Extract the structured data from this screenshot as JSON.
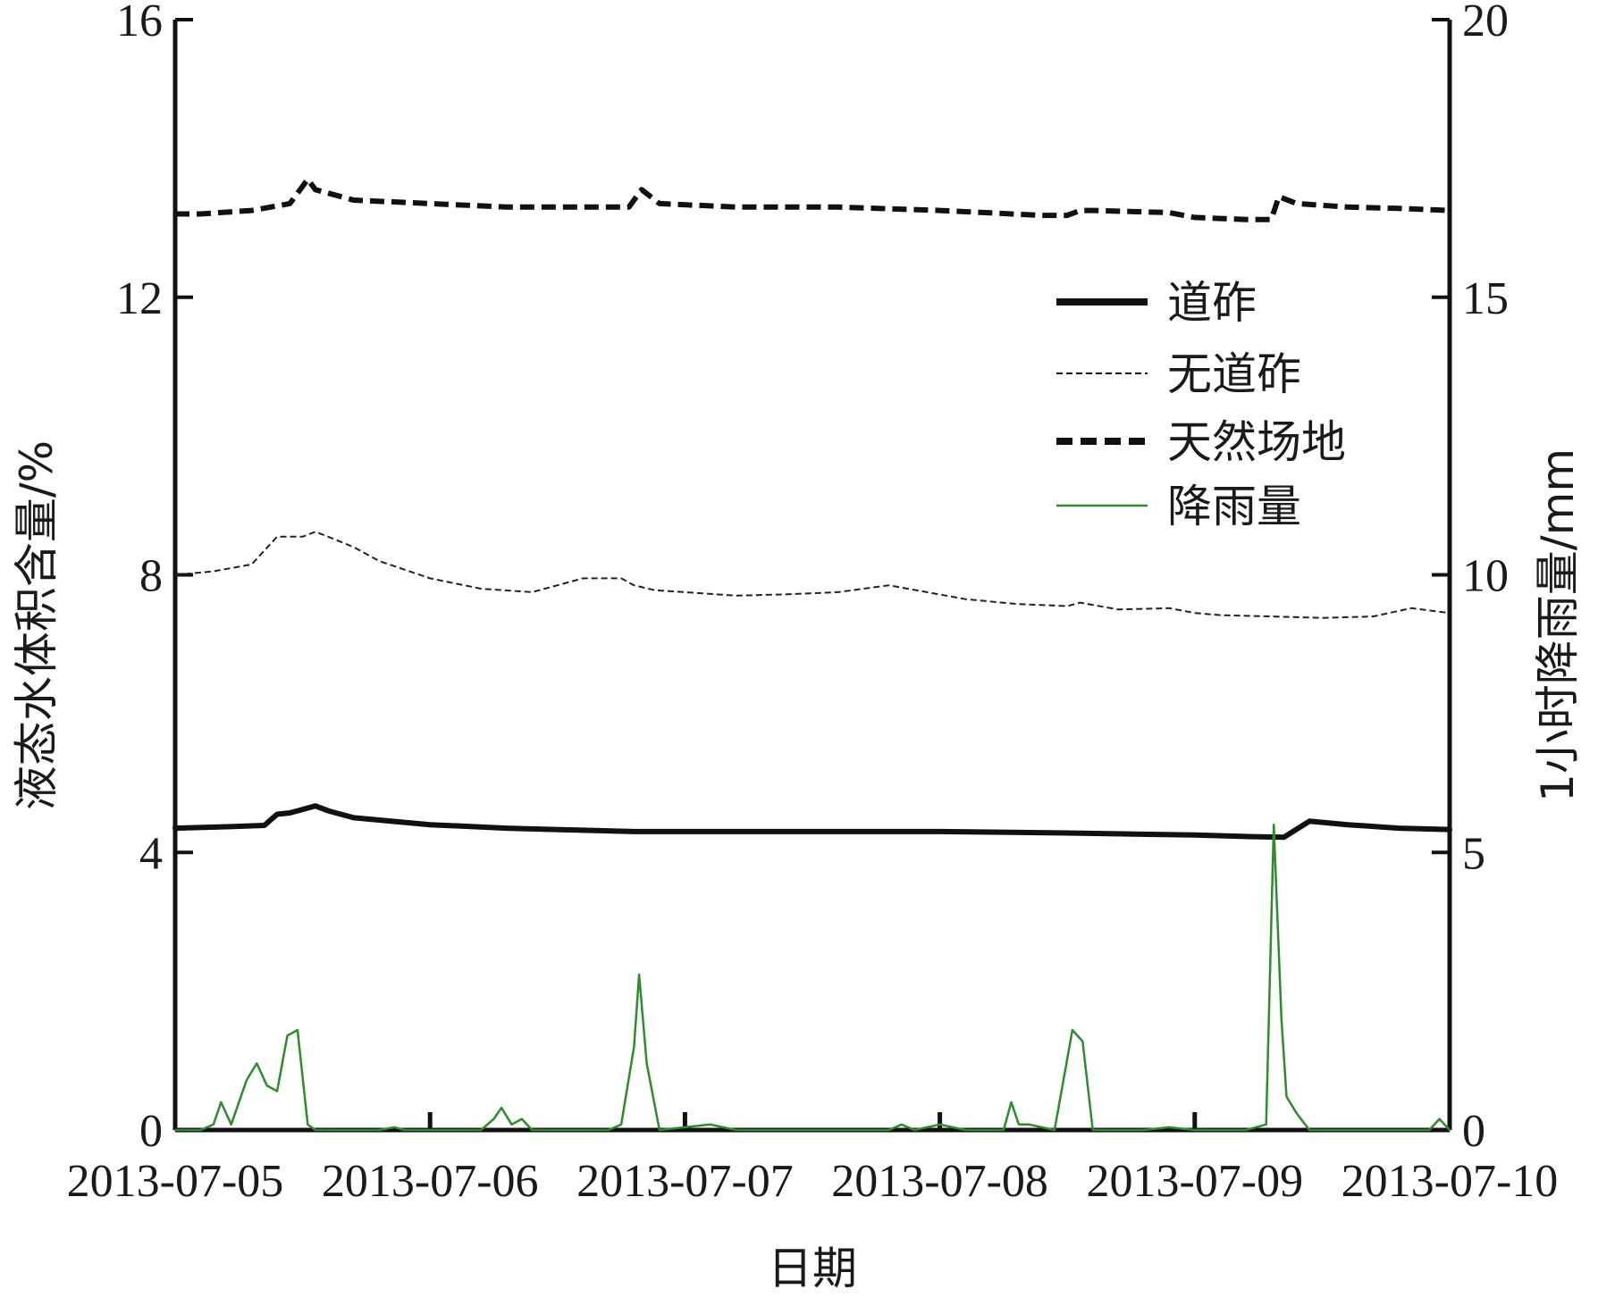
{
  "chart_data": {
    "type": "line",
    "xlabel": "日期",
    "ylabel_left": "液态水体积含量/%",
    "ylabel_right": "1小时降雨量/mm",
    "x_tick_labels": [
      "2013-07-05",
      "2013-07-06",
      "2013-07-07",
      "2013-07-08",
      "2013-07-09",
      "2013-07-10"
    ],
    "x_range_days": [
      0,
      5
    ],
    "left_ylim": [
      0,
      16
    ],
    "left_ticks": [
      "0",
      "4",
      "8",
      "12",
      "16"
    ],
    "right_ylim": [
      0,
      20
    ],
    "right_ticks": [
      "0",
      "5",
      "10",
      "15",
      "20"
    ],
    "grid": false,
    "legend_position": "top-right",
    "series": [
      {
        "name": "道砟",
        "axis": "left",
        "style": "solid-thick",
        "color": "#111111",
        "x": [
          0,
          0.2,
          0.35,
          0.4,
          0.45,
          0.5,
          0.55,
          0.6,
          0.7,
          1.0,
          1.3,
          1.6,
          1.8,
          2.0,
          2.5,
          3.0,
          3.5,
          4.0,
          4.2,
          4.35,
          4.45,
          4.6,
          4.8,
          5.0
        ],
        "y": [
          4.35,
          4.37,
          4.39,
          4.55,
          4.57,
          4.62,
          4.67,
          4.6,
          4.5,
          4.4,
          4.35,
          4.32,
          4.3,
          4.3,
          4.3,
          4.3,
          4.28,
          4.25,
          4.23,
          4.22,
          4.45,
          4.4,
          4.35,
          4.33
        ]
      },
      {
        "name": "无道砟",
        "axis": "left",
        "style": "dashed-thin",
        "color": "#222222",
        "x": [
          0,
          0.15,
          0.3,
          0.4,
          0.5,
          0.55,
          0.6,
          0.7,
          0.8,
          1.0,
          1.2,
          1.4,
          1.6,
          1.75,
          1.8,
          1.88,
          2.0,
          2.2,
          2.4,
          2.6,
          2.8,
          2.95,
          3.1,
          3.3,
          3.5,
          3.55,
          3.7,
          3.9,
          4.0,
          4.1,
          4.3,
          4.5,
          4.7,
          4.85,
          5.0
        ],
        "y": [
          8.0,
          8.05,
          8.15,
          8.55,
          8.55,
          8.62,
          8.55,
          8.4,
          8.2,
          7.95,
          7.8,
          7.75,
          7.95,
          7.95,
          7.85,
          7.78,
          7.75,
          7.7,
          7.72,
          7.75,
          7.85,
          7.75,
          7.65,
          7.58,
          7.55,
          7.6,
          7.5,
          7.52,
          7.45,
          7.42,
          7.4,
          7.38,
          7.4,
          7.52,
          7.45
        ]
      },
      {
        "name": "天然场地",
        "axis": "left",
        "style": "dashed-thick",
        "color": "#111111",
        "x": [
          0,
          0.1,
          0.3,
          0.45,
          0.5,
          0.52,
          0.55,
          0.6,
          0.7,
          1.0,
          1.3,
          1.6,
          1.78,
          1.83,
          1.9,
          2.2,
          2.6,
          3.0,
          3.4,
          3.5,
          3.55,
          3.6,
          3.9,
          4.0,
          4.2,
          4.3,
          4.33,
          4.4,
          4.6,
          4.8,
          5.0
        ],
        "y": [
          13.2,
          13.2,
          13.25,
          13.35,
          13.6,
          13.7,
          13.55,
          13.5,
          13.4,
          13.35,
          13.3,
          13.3,
          13.3,
          13.55,
          13.35,
          13.3,
          13.3,
          13.25,
          13.18,
          13.18,
          13.25,
          13.25,
          13.22,
          13.15,
          13.12,
          13.12,
          13.45,
          13.35,
          13.3,
          13.28,
          13.25
        ]
      },
      {
        "name": "降雨量",
        "axis": "right",
        "style": "solid-thin",
        "color": "#2e8b2e",
        "x": [
          0,
          0.1,
          0.15,
          0.18,
          0.22,
          0.28,
          0.32,
          0.36,
          0.4,
          0.44,
          0.48,
          0.52,
          0.55,
          0.6,
          0.8,
          0.86,
          0.9,
          1.0,
          1.1,
          1.2,
          1.25,
          1.28,
          1.32,
          1.36,
          1.4,
          1.7,
          1.75,
          1.8,
          1.82,
          1.85,
          1.9,
          2.0,
          2.1,
          2.2,
          2.4,
          2.8,
          2.85,
          2.9,
          3.0,
          3.1,
          3.25,
          3.28,
          3.31,
          3.35,
          3.45,
          3.52,
          3.56,
          3.6,
          3.8,
          3.9,
          4.0,
          4.2,
          4.28,
          4.31,
          4.34,
          4.36,
          4.4,
          4.45,
          4.5,
          4.8,
          4.92,
          4.96,
          5.0
        ],
        "y": [
          0,
          0,
          0.1,
          0.5,
          0.1,
          0.9,
          1.2,
          0.8,
          0.7,
          1.7,
          1.8,
          0.1,
          0,
          0,
          0,
          0.05,
          0,
          0,
          0,
          0,
          0.2,
          0.4,
          0.1,
          0.2,
          0,
          0,
          0.1,
          1.5,
          2.8,
          1.2,
          0,
          0.05,
          0.1,
          0,
          0,
          0,
          0.1,
          0,
          0.1,
          0,
          0,
          0.5,
          0.1,
          0.1,
          0,
          1.8,
          1.6,
          0,
          0,
          0.05,
          0,
          0,
          0.1,
          5.5,
          2.0,
          0.6,
          0.3,
          0,
          0,
          0,
          0,
          0.2,
          0
        ]
      }
    ]
  }
}
